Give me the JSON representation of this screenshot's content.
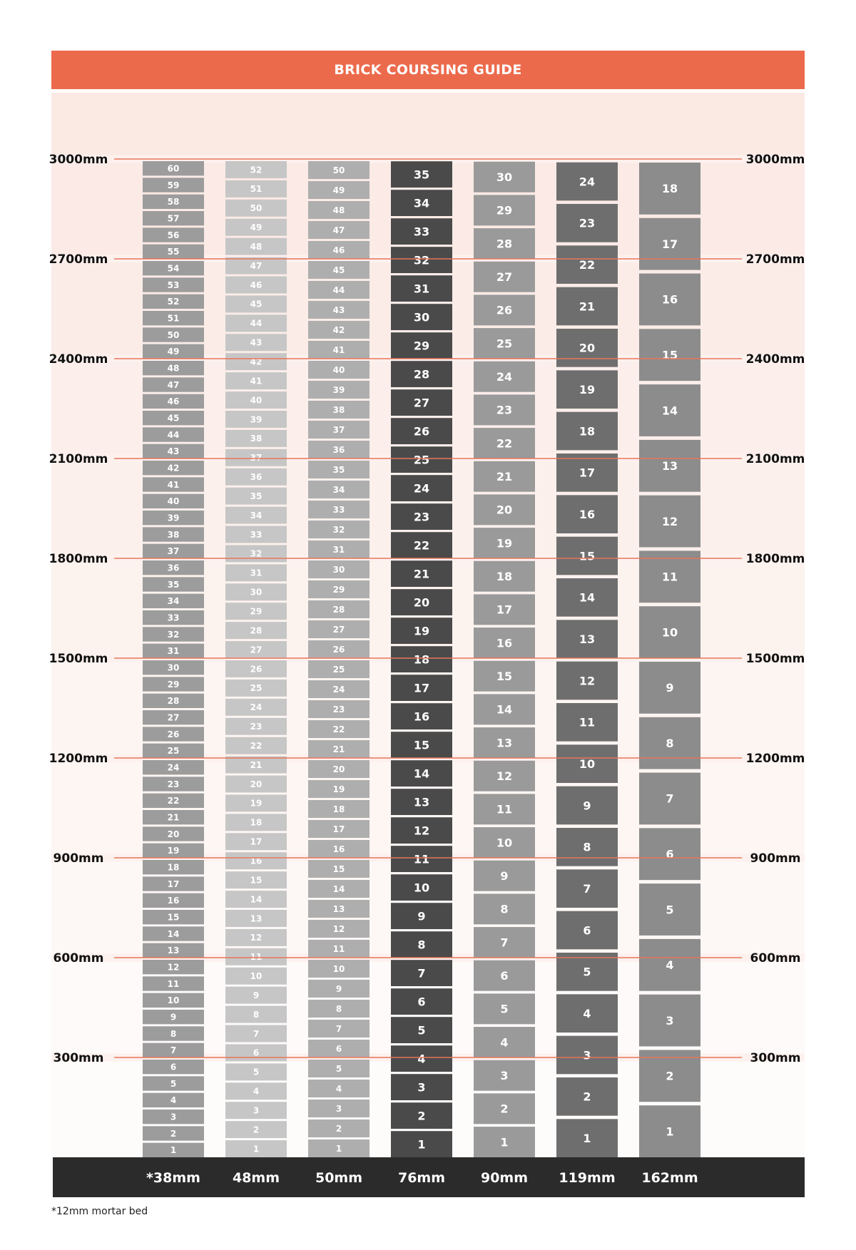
{
  "title": "BRICK COURSING GUIDE",
  "footnote": "*12mm mortar bed",
  "colors": {
    "header": "#EC6A4C",
    "guide_line": "#E8755A",
    "footer": "#2B2B2B"
  },
  "chart_data": {
    "type": "bar",
    "title": "BRICK COURSING GUIDE",
    "xlabel": "",
    "ylabel": "",
    "ylim": [
      0,
      3000
    ],
    "y_unit": "mm",
    "height_ticks": [
      {
        "value": 300,
        "label": "300mm"
      },
      {
        "value": 600,
        "label": "600mm"
      },
      {
        "value": 900,
        "label": "900mm"
      },
      {
        "value": 1200,
        "label": "1200mm"
      },
      {
        "value": 1500,
        "label": "1500mm"
      },
      {
        "value": 1800,
        "label": "1800mm"
      },
      {
        "value": 2100,
        "label": "2100mm"
      },
      {
        "value": 2400,
        "label": "2400mm"
      },
      {
        "value": 2700,
        "label": "2700mm"
      },
      {
        "value": 3000,
        "label": "3000mm"
      }
    ],
    "columns": [
      {
        "label": "*38mm",
        "courses": 60,
        "color": "#9C9C9C"
      },
      {
        "label": "48mm",
        "courses": 52,
        "color": "#C6C6C6"
      },
      {
        "label": "50mm",
        "courses": 50,
        "color": "#AEAEAE"
      },
      {
        "label": "76mm",
        "courses": 35,
        "color": "#4A4A4A"
      },
      {
        "label": "90mm",
        "courses": 30,
        "color": "#9A9A9A"
      },
      {
        "label": "119mm",
        "courses": 24,
        "color": "#6E6E6E"
      },
      {
        "label": "162mm",
        "courses": 18,
        "color": "#8C8C8C"
      }
    ]
  }
}
